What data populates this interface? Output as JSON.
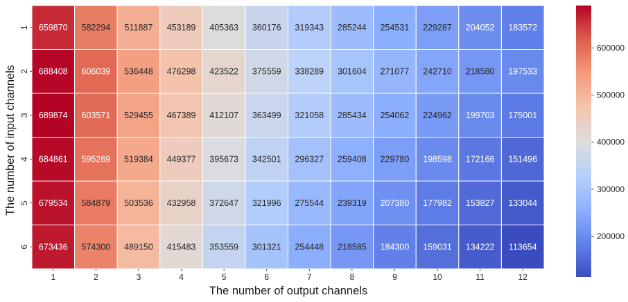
{
  "chart_data": {
    "type": "heatmap",
    "title": "",
    "xlabel": "The number of output channels",
    "ylabel": "The number of input channels",
    "x_categories": [
      "1",
      "2",
      "3",
      "4",
      "5",
      "6",
      "7",
      "8",
      "9",
      "10",
      "11",
      "12"
    ],
    "y_categories": [
      "1",
      "2",
      "3",
      "4",
      "5",
      "6"
    ],
    "values": [
      [
        659870,
        582294,
        511887,
        453189,
        405363,
        360176,
        319343,
        285244,
        254531,
        229287,
        204052,
        183572
      ],
      [
        688408,
        606039,
        536448,
        476298,
        423522,
        375559,
        338289,
        301604,
        271077,
        242710,
        218580,
        197533
      ],
      [
        689874,
        603571,
        529455,
        467389,
        412107,
        363499,
        321058,
        285434,
        254062,
        224962,
        199703,
        175001
      ],
      [
        684861,
        595269,
        519384,
        449377,
        395673,
        342501,
        296327,
        259408,
        229780,
        198598,
        172166,
        151496
      ],
      [
        679534,
        584879,
        503536,
        432958,
        372647,
        321996,
        275544,
        239319,
        207380,
        177982,
        153827,
        133044
      ],
      [
        673436,
        574300,
        489150,
        415483,
        353559,
        301321,
        254448,
        218585,
        184300,
        159031,
        134222,
        113654
      ]
    ],
    "colormap": "coolwarm",
    "colorbar": {
      "min": 113654,
      "max": 689874,
      "ticks": [
        200000,
        300000,
        400000,
        500000,
        600000
      ],
      "tick_labels": [
        "200000",
        "300000",
        "400000",
        "500000",
        "600000"
      ]
    },
    "annotations": true,
    "grid": false,
    "legend": "colorbar-right"
  }
}
